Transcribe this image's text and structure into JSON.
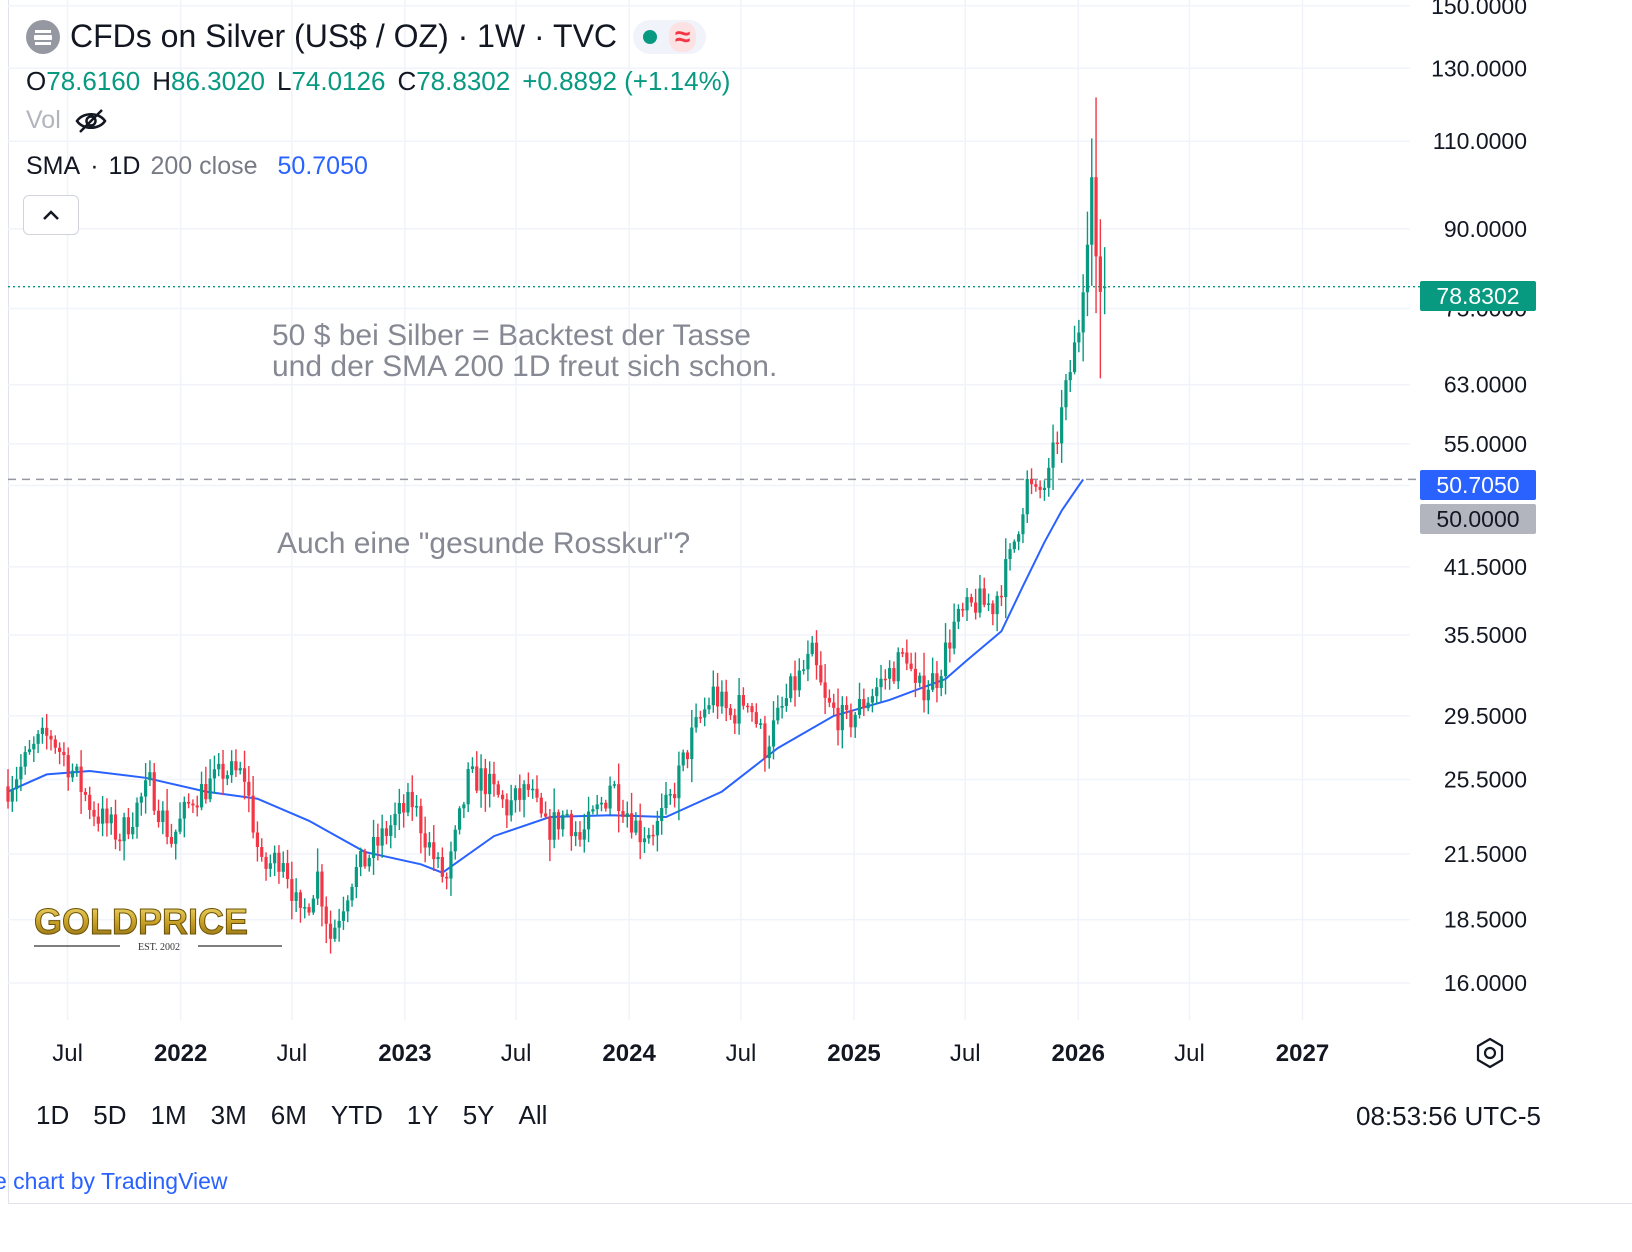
{
  "header": {
    "title": "CFDs on Silver (US$ / OZ) · 1W · TVC",
    "logo_icon": "silver-bars-icon",
    "status_icon": "market-open-dot-icon",
    "indicator_icon": "wave-icon"
  },
  "ohlc": {
    "o_label": "O",
    "o_value": "78.6160",
    "h_label": "H",
    "h_value": "86.3020",
    "l_label": "L",
    "l_value": "74.0126",
    "c_label": "C",
    "c_value": "78.8302",
    "change": "+0.8892 (+1.14%)"
  },
  "volume": {
    "label": "Vol",
    "icon": "eye-hidden-icon"
  },
  "sma": {
    "name": "SMA",
    "sep": "·",
    "tf": "1D",
    "args": "200 close",
    "value": "50.7050"
  },
  "collapse_icon": "chevron-up-icon",
  "annotations": {
    "line1": "50 $ bei Silber = Backtest der Tasse",
    "line2": "und der SMA 200 1D freut sich schon.",
    "line3": "Auch eine \"gesunde Rosskur\"?"
  },
  "badges": {
    "last": "78.8302",
    "sma": "50.7050",
    "level": "50.0000"
  },
  "watermark": {
    "name": "GOLDPRICE",
    "sub": "EST. 2002"
  },
  "bottom_bar": {
    "ranges": [
      "1D",
      "5D",
      "1M",
      "3M",
      "6M",
      "YTD",
      "1Y",
      "5Y",
      "All"
    ],
    "clock": "08:53:56 UTC-5",
    "settings_icon": "gear-icon"
  },
  "credit": "e chart by TradingView",
  "colors": {
    "up": "#089981",
    "down": "#f23645",
    "sma": "#2962ff",
    "grid": "#f0f3fa",
    "text": "#131722"
  },
  "chart_data": {
    "type": "candlestick",
    "timeframe": "1W",
    "scale": "log",
    "y_ticks": [
      150,
      130,
      110,
      90,
      75,
      63,
      55,
      50,
      41.5,
      35.5,
      29.5,
      25.5,
      21.5,
      18.5,
      16
    ],
    "y_tick_labels": [
      "150.0000",
      "130.0000",
      "110.0000",
      "90.0000",
      "75.0000",
      "63.0000",
      "55.0000",
      "50.0000",
      "41.5000",
      "35.5000",
      "29.5000",
      "25.5000",
      "21.5000",
      "18.5000",
      "16.0000"
    ],
    "x_ticks": [
      {
        "date": "2021-07-01",
        "label": "Jul",
        "bold": false
      },
      {
        "date": "2022-01-01",
        "label": "2022",
        "bold": true
      },
      {
        "date": "2022-07-01",
        "label": "Jul",
        "bold": false
      },
      {
        "date": "2023-01-01",
        "label": "2023",
        "bold": true
      },
      {
        "date": "2023-07-01",
        "label": "Jul",
        "bold": false
      },
      {
        "date": "2024-01-01",
        "label": "2024",
        "bold": true
      },
      {
        "date": "2024-07-01",
        "label": "Jul",
        "bold": false
      },
      {
        "date": "2025-01-01",
        "label": "2025",
        "bold": true
      },
      {
        "date": "2025-07-01",
        "label": "Jul",
        "bold": false
      },
      {
        "date": "2026-01-01",
        "label": "2026",
        "bold": true
      },
      {
        "date": "2026-07-01",
        "label": "Jul",
        "bold": false
      },
      {
        "date": "2027-01-01",
        "label": "2027",
        "bold": true
      }
    ],
    "x_range": [
      "2021-03-26",
      "2027-06-25"
    ],
    "y_range": [
      14.7,
      152
    ],
    "close_anchors": [
      [
        "2021-03-26",
        25.1
      ],
      [
        "2021-05-14",
        27.7
      ],
      [
        "2021-06-04",
        28.2
      ],
      [
        "2021-07-09",
        26.0
      ],
      [
        "2021-08-13",
        23.7
      ],
      [
        "2021-09-24",
        22.4
      ],
      [
        "2021-11-12",
        25.2
      ],
      [
        "2021-12-17",
        22.2
      ],
      [
        "2022-01-21",
        24.5
      ],
      [
        "2022-03-04",
        25.6
      ],
      [
        "2022-03-11",
        26.0
      ],
      [
        "2022-04-15",
        25.7
      ],
      [
        "2022-05-13",
        20.7
      ],
      [
        "2022-06-17",
        21.5
      ],
      [
        "2022-07-15",
        18.4
      ],
      [
        "2022-08-12",
        20.5
      ],
      [
        "2022-09-02",
        17.8
      ],
      [
        "2022-10-07",
        20.4
      ],
      [
        "2022-11-11",
        21.7
      ],
      [
        "2022-12-16",
        23.3
      ],
      [
        "2023-01-13",
        24.2
      ],
      [
        "2023-02-24",
        20.8
      ],
      [
        "2023-03-10",
        20.2
      ],
      [
        "2023-04-14",
        25.4
      ],
      [
        "2023-05-05",
        25.6
      ],
      [
        "2023-06-16",
        23.9
      ],
      [
        "2023-07-21",
        24.9
      ],
      [
        "2023-08-18",
        22.7
      ],
      [
        "2023-09-22",
        23.6
      ],
      [
        "2023-10-13",
        22.2
      ],
      [
        "2023-11-24",
        24.5
      ],
      [
        "2023-12-01",
        25.4
      ],
      [
        "2024-01-19",
        22.6
      ],
      [
        "2024-02-16",
        22.9
      ],
      [
        "2024-03-08",
        24.3
      ],
      [
        "2024-04-12",
        28.1
      ],
      [
        "2024-05-17",
        31.1
      ],
      [
        "2024-06-14",
        29.4
      ],
      [
        "2024-07-12",
        30.9
      ],
      [
        "2024-08-09",
        27.5
      ],
      [
        "2024-09-20",
        31.2
      ],
      [
        "2024-10-25",
        33.8
      ],
      [
        "2024-11-15",
        30.3
      ],
      [
        "2024-12-20",
        29.0
      ],
      [
        "2025-01-24",
        30.8
      ],
      [
        "2025-02-21",
        32.2
      ],
      [
        "2025-03-28",
        34.1
      ],
      [
        "2025-04-11",
        31.1
      ],
      [
        "2025-05-16",
        32.3
      ],
      [
        "2025-06-13",
        36.3
      ],
      [
        "2025-07-18",
        38.2
      ],
      [
        "2025-08-15",
        38.0
      ],
      [
        "2025-09-12",
        42.2
      ],
      [
        "2025-10-10",
        50.2
      ],
      [
        "2025-10-24",
        48.6
      ],
      [
        "2025-11-14",
        50.8
      ],
      [
        "2025-12-12",
        61.9
      ],
      [
        "2026-01-02",
        72.0
      ],
      [
        "2026-01-16",
        89.8
      ],
      [
        "2026-01-23",
        101.3
      ],
      [
        "2026-01-30",
        84.5
      ],
      [
        "2026-02-06",
        77.9
      ],
      [
        "2026-02-13",
        78.8302
      ]
    ],
    "extreme_candles": [
      {
        "date": "2026-01-30",
        "open": 101.3,
        "high": 121.6,
        "low": 74.2,
        "close": 84.5
      },
      {
        "date": "2026-02-06",
        "open": 84.5,
        "high": 92.0,
        "low": 63.9,
        "close": 77.9
      },
      {
        "date": "2026-02-13",
        "open": 78.616,
        "high": 86.302,
        "low": 74.0126,
        "close": 78.8302
      }
    ],
    "sma_series": [
      [
        "2021-03-26",
        24.8
      ],
      [
        "2021-05-28",
        25.8
      ],
      [
        "2021-08-06",
        26.0
      ],
      [
        "2021-11-05",
        25.6
      ],
      [
        "2022-02-11",
        24.8
      ],
      [
        "2022-05-06",
        24.4
      ],
      [
        "2022-07-29",
        23.2
      ],
      [
        "2022-10-28",
        21.6
      ],
      [
        "2023-01-27",
        21.0
      ],
      [
        "2023-03-03",
        20.6
      ],
      [
        "2023-05-26",
        22.4
      ],
      [
        "2023-08-25",
        23.4
      ],
      [
        "2023-12-01",
        23.5
      ],
      [
        "2024-03-01",
        23.4
      ],
      [
        "2024-05-31",
        24.8
      ],
      [
        "2024-08-30",
        27.4
      ],
      [
        "2024-11-29",
        29.5
      ],
      [
        "2025-02-28",
        30.6
      ],
      [
        "2025-05-30",
        32.1
      ],
      [
        "2025-07-04",
        33.5
      ],
      [
        "2025-08-29",
        35.8
      ],
      [
        "2025-10-03",
        39.7
      ],
      [
        "2025-11-07",
        43.9
      ],
      [
        "2025-12-05",
        47.2
      ],
      [
        "2026-01-02",
        50.0
      ],
      [
        "2026-01-09",
        50.705
      ]
    ],
    "horizontal_lines": [
      {
        "value": 78.8302,
        "style": "dotted",
        "color": "#089981"
      },
      {
        "value": 50.705,
        "style": "dashed",
        "color": "#9598a1"
      }
    ]
  }
}
